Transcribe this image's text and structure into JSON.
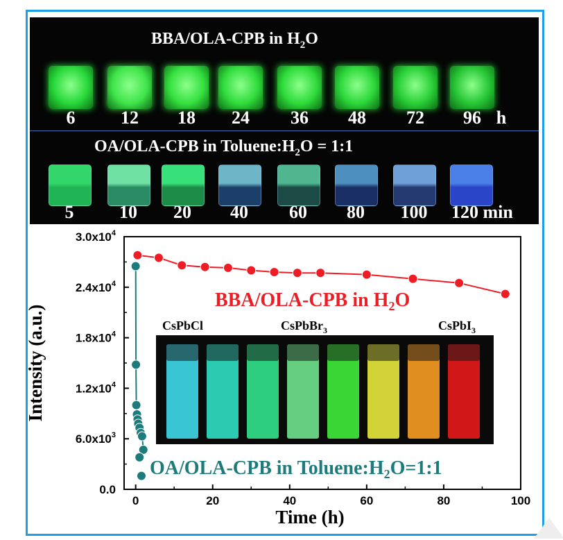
{
  "photo": {
    "top_title": "BBA/OLA-CPB  in H",
    "top_title_sub": "2",
    "top_title_end": "O",
    "top_labels": [
      "6",
      "12",
      "18",
      "24",
      "36",
      "48",
      "72",
      "96"
    ],
    "top_unit": "h",
    "bottom_title": "OA/OLA-CPB  in  Toluene:H",
    "bottom_title_sub": "2",
    "bottom_title_end": "O = 1:1",
    "bottom_labels": [
      "5",
      "10",
      "20",
      "40",
      "60",
      "80",
      "100",
      "120 min"
    ]
  },
  "inset": {
    "label1": "CsPbCl",
    "label2": "CsPbBr",
    "label2_sub": "3",
    "label3": "CsPbI",
    "label3_sub": "3",
    "vial_colors": [
      "#3fd6e6",
      "#2fdcc0",
      "#32e08a",
      "#6fe08c",
      "#3ee83a",
      "#e3e53c",
      "#f29a22",
      "#e21a1a"
    ]
  },
  "colors": {
    "red": "#ee1c25",
    "teal": "#1e7b7b",
    "frame": "#1ea0e6"
  },
  "chart_data": {
    "type": "scatter",
    "xlabel": "Time (h)",
    "ylabel": "Intensity (a.u.)",
    "xlim": [
      -3,
      100
    ],
    "ylim": [
      0,
      30000
    ],
    "x_ticks": [
      "0",
      "20",
      "40",
      "60",
      "80",
      "100"
    ],
    "y_ticks": [
      "0.0",
      "6.0x10",
      "1.2x10",
      "1.8x10",
      "2.4x10",
      "3.0x10"
    ],
    "y_tick_exp": [
      "",
      "3",
      "4",
      "4",
      "4",
      "4"
    ],
    "series": [
      {
        "name": "BBA/OLA-CPB   in H",
        "name_sub": "2",
        "name_end": "O",
        "color": "#ee1c25",
        "x": [
          0.5,
          6,
          12,
          18,
          24,
          30,
          36,
          42,
          48,
          60,
          72,
          84,
          96
        ],
        "y": [
          27800,
          27500,
          26600,
          26400,
          26300,
          26000,
          25800,
          25700,
          25700,
          25500,
          25000,
          24500,
          23200
        ]
      },
      {
        "name": "OA/OLA-CPB in Toluene:H",
        "name_sub": "2",
        "name_end": "O=1:1",
        "color": "#1e7b7b",
        "x": [
          0,
          0.08,
          0.17,
          0.33,
          0.5,
          0.67,
          1.0,
          1.33,
          1.67,
          2.0,
          1.0,
          1.5
        ],
        "y": [
          26500,
          14800,
          10000,
          8900,
          8300,
          7800,
          7300,
          6700,
          6300,
          4700,
          3800,
          1600
        ]
      }
    ]
  }
}
